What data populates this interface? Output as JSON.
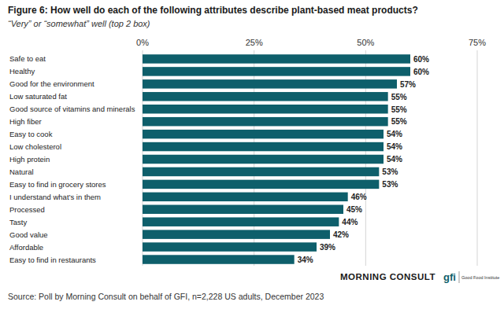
{
  "chart_data": {
    "type": "bar",
    "orientation": "horizontal",
    "title": "Figure 6: How well do each of the following attributes describe plant-based meat products?",
    "subtitle": "“Very” or “somewhat” well (top 2 box)",
    "source": "Source: Poll by Morning Consult on behalf of GFI, n=2,228 US adults, December 2023",
    "annotations": [
      "MORNING CONSULT",
      "gfi",
      "Good Food Institute"
    ],
    "categories": [
      "Safe to eat",
      "Healthy",
      "Good for the environment",
      "Low saturated fat",
      "Good source of vitamins and minerals",
      "High fiber",
      "Easy to cook",
      "Low cholesterol",
      "High protein",
      "Natural",
      "Easy to find in grocery stores",
      "I understand what’s in them",
      "Processed",
      "Tasty",
      "Good value",
      "Affordable",
      "Easy to find in restaurants"
    ],
    "values": [
      60,
      60,
      57,
      55,
      55,
      55,
      54,
      54,
      54,
      53,
      53,
      46,
      45,
      44,
      42,
      39,
      34
    ],
    "value_labels": [
      "60%",
      "60%",
      "57%",
      "55%",
      "55%",
      "55%",
      "54%",
      "54%",
      "54%",
      "53%",
      "53%",
      "46%",
      "45%",
      "44%",
      "42%",
      "39%",
      "34%"
    ],
    "xlim": [
      0,
      75
    ],
    "xticks": [
      {
        "value": 0,
        "label": "0%"
      },
      {
        "value": 25,
        "label": "25%"
      },
      {
        "value": 50,
        "label": "50%"
      },
      {
        "value": 75,
        "label": "75%"
      }
    ],
    "color": "#0e5f6b",
    "grid": true,
    "data_labels": true
  }
}
